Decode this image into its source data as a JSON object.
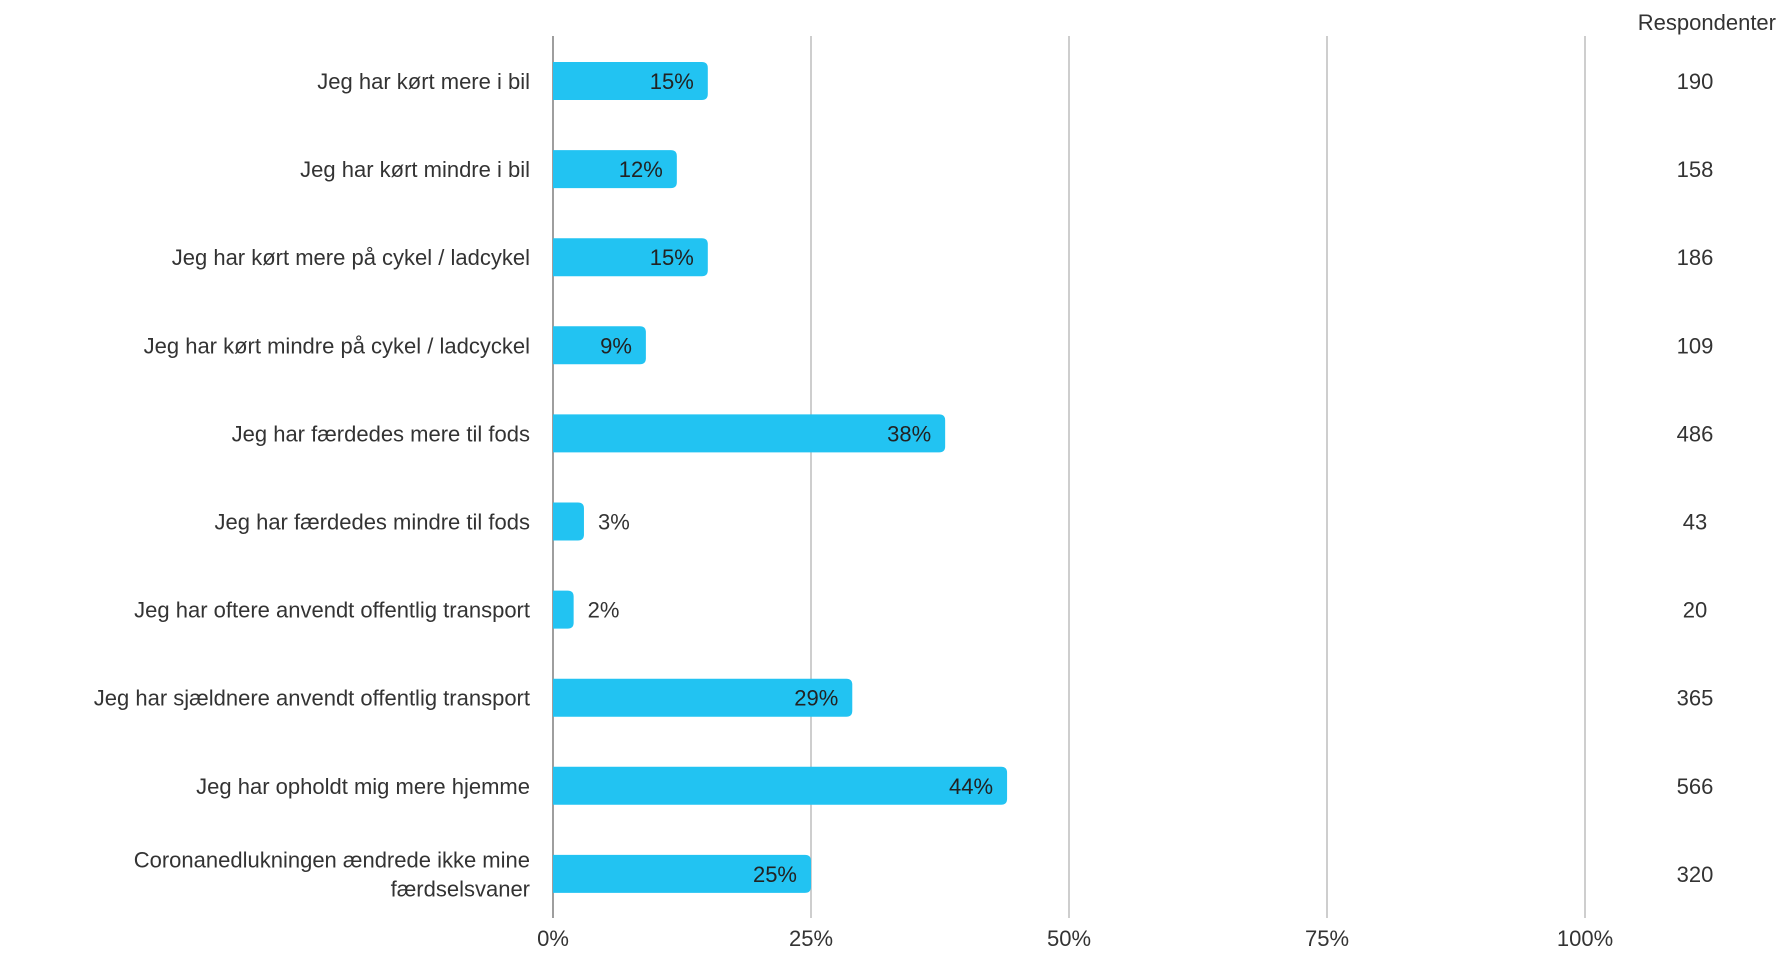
{
  "chart_data": {
    "type": "bar",
    "orientation": "horizontal",
    "categories": [
      [
        "Jeg har kørt mere i bil"
      ],
      [
        "Jeg har kørt mindre i bil"
      ],
      [
        "Jeg har kørt mere på cykel / ladcykel"
      ],
      [
        "Jeg har kørt mindre på cykel / ladcyckel"
      ],
      [
        "Jeg har færdedes mere til fods"
      ],
      [
        "Jeg har færdedes mindre til fods"
      ],
      [
        "Jeg har oftere anvendt offentlig transport"
      ],
      [
        "Jeg har sjældnere anvendt offentlig transport"
      ],
      [
        "Jeg har opholdt mig mere hjemme"
      ],
      [
        "Coronanedlukningen ændrede ikke mine",
        "færdselsvaner"
      ]
    ],
    "values": [
      15,
      12,
      15,
      9,
      38,
      3,
      2,
      29,
      44,
      25
    ],
    "value_labels": [
      "15%",
      "12%",
      "15%",
      "9%",
      "38%",
      "3%",
      "2%",
      "29%",
      "44%",
      "25%"
    ],
    "respondents_header": "Respondenter",
    "respondents": [
      "190",
      "158",
      "186",
      "109",
      "486",
      "43",
      "20",
      "365",
      "566",
      "320"
    ],
    "xlim": [
      0,
      100
    ],
    "x_ticks": [
      0,
      25,
      50,
      75,
      100
    ],
    "x_tick_labels": [
      "0%",
      "25%",
      "50%",
      "75%",
      "100%"
    ],
    "grid": true,
    "bar_color": "#22C3F2",
    "text_color": "#333333",
    "grid_color": "#BDBDBD",
    "axis_color": "#9E9E9E"
  }
}
